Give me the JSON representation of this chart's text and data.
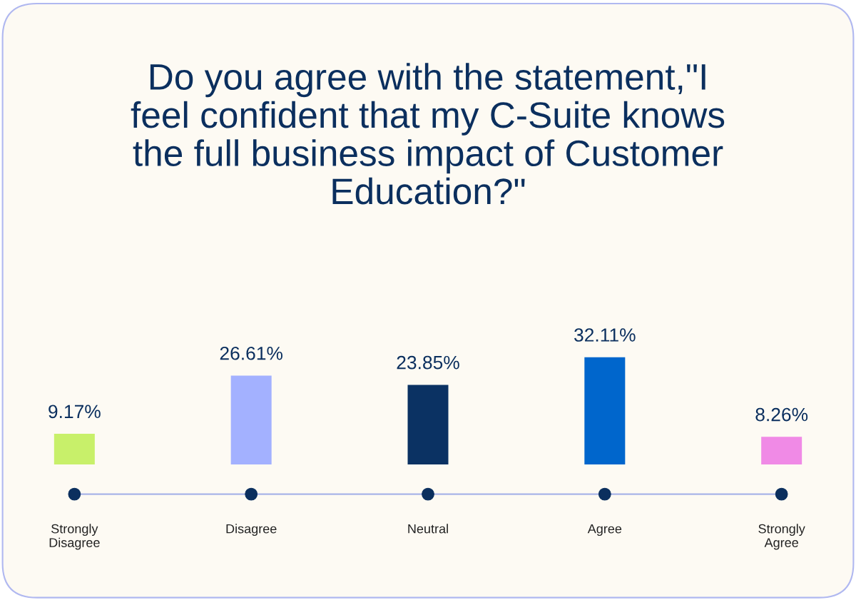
{
  "chart_data": {
    "type": "bar",
    "title": "Do you agree with the statement,\"I\nfeel confident that my C-Suite knows\nthe full business impact of Customer\nEducation?\"",
    "categories": [
      "Strongly\nDisagree",
      "Disagree",
      "Neutral",
      "Agree",
      "Strongly\nAgree"
    ],
    "values": [
      9.17,
      26.61,
      23.85,
      32.11,
      8.26
    ],
    "value_labels": [
      "9.17%",
      "26.61%",
      "23.85%",
      "32.11%",
      "8.26%"
    ],
    "colors": [
      "#c8f06a",
      "#a3b1ff",
      "#0b3263",
      "#0066cc",
      "#f08ae6"
    ],
    "grid": false,
    "legend": false
  }
}
